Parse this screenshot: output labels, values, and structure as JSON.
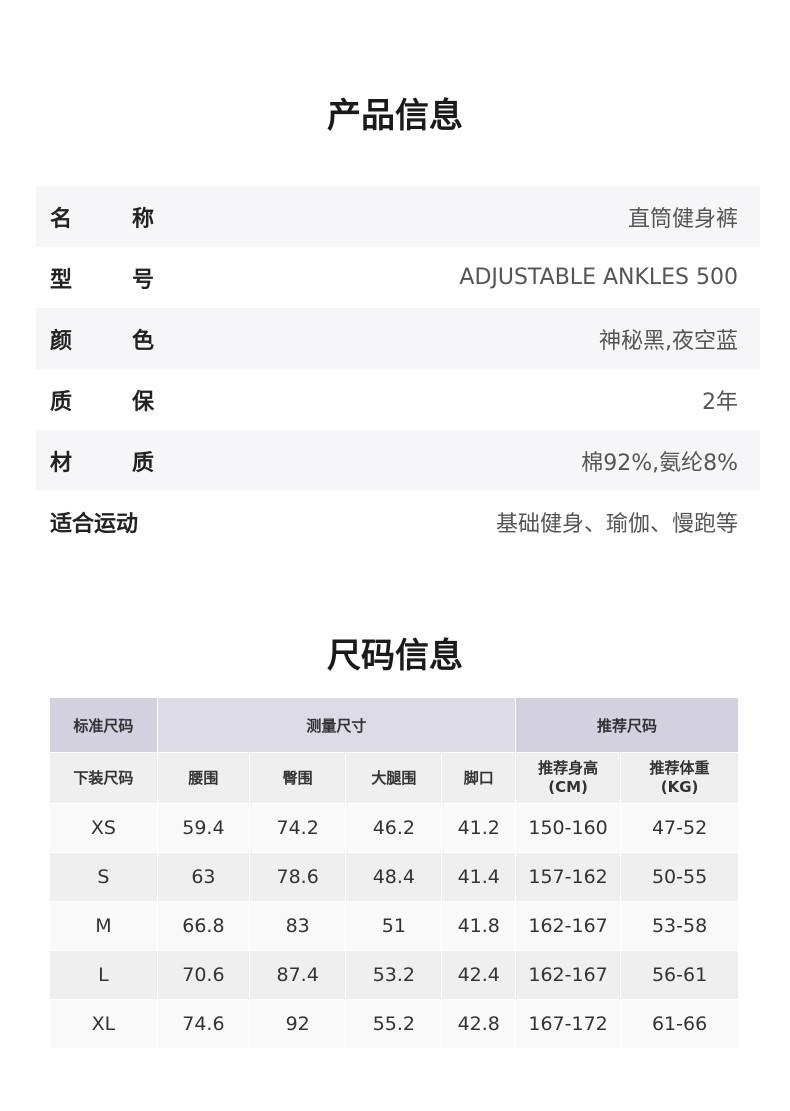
{
  "product_title": "产品信息",
  "product_info": [
    {
      "label": "名称",
      "value": "直筒健身裤"
    },
    {
      "label": "型号",
      "value": "ADJUSTABLE ANKLES 500"
    },
    {
      "label": "颜色",
      "value": "神秘黑,夜空蓝"
    },
    {
      "label": "质保",
      "value": "2年"
    },
    {
      "label": "材质",
      "value": "棉92%,氨纶8%"
    },
    {
      "label": "适合运动",
      "value": "基础健身、瑜伽、慢跑等"
    }
  ],
  "size_title": "尺码信息",
  "size_table": {
    "group_headers": [
      "标准尺码",
      "测量尺寸",
      "推荐尺码"
    ],
    "columns": [
      "下装尺码",
      "腰围",
      "臀围",
      "大腿围",
      "脚口",
      "推荐身高\n(CM)",
      "推荐体重\n(KG)"
    ],
    "rows": [
      [
        "XS",
        "59.4",
        "74.2",
        "46.2",
        "41.2",
        "150-160",
        "47-52"
      ],
      [
        "S",
        "63",
        "78.6",
        "48.4",
        "41.4",
        "157-162",
        "50-55"
      ],
      [
        "M",
        "66.8",
        "83",
        "51",
        "41.8",
        "162-167",
        "53-58"
      ],
      [
        "L",
        "70.6",
        "87.4",
        "53.2",
        "42.4",
        "162-167",
        "56-61"
      ],
      [
        "XL",
        "74.6",
        "92",
        "55.2",
        "42.8",
        "167-172",
        "61-66"
      ]
    ]
  }
}
